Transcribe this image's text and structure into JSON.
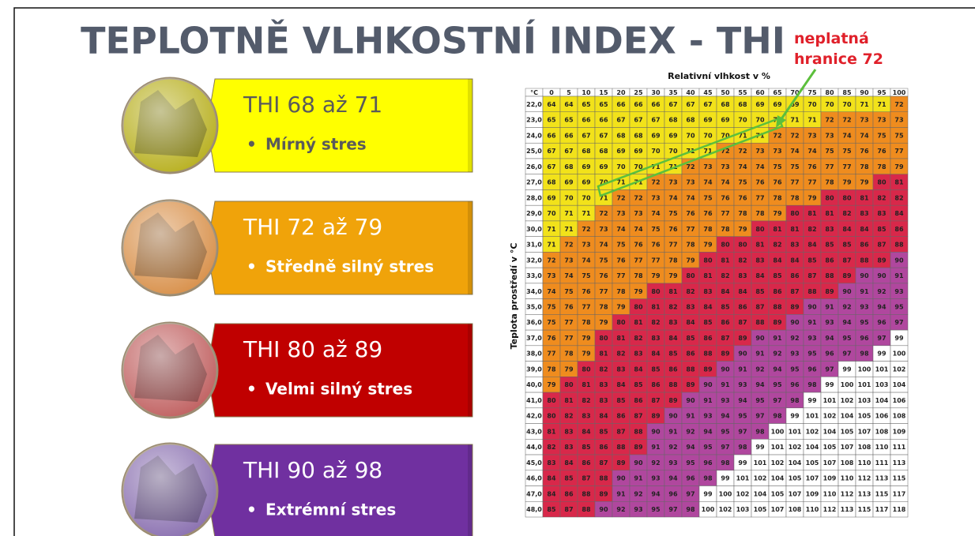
{
  "header": {
    "title": "TEPLOTNĚ VLHKOSTNÍ INDEX - THI"
  },
  "levels": [
    {
      "title": "THI 68 až 71",
      "text": "Mírný stres",
      "color": "#ffff00",
      "ink": "#5a5a5a",
      "photo": "#b8b020"
    },
    {
      "title": "THI 72 až 79",
      "text": "Středně silný stres",
      "color": "#f0a30a",
      "ink": "#ffffff",
      "photo": "#d8904a"
    },
    {
      "title": "THI 80 až 89",
      "text": "Velmi silný stres",
      "color": "#c00000",
      "ink": "#ffffff",
      "photo": "#c06060"
    },
    {
      "title": "THI 90 až 98",
      "text": "Extrémní stres",
      "color": "#7030a0",
      "ink": "#ffffff",
      "photo": "#8a70b0"
    }
  ],
  "annotation": {
    "text": "neplatná hranice 72"
  },
  "table": {
    "title": "Relativní vlhkost v %",
    "y_label": "Teplota prostředí v °C",
    "columns": [
      "°C",
      0,
      5,
      10,
      15,
      20,
      25,
      30,
      35,
      40,
      45,
      50,
      55,
      60,
      65,
      70,
      75,
      80,
      85,
      90,
      95,
      100
    ],
    "zones": [
      {
        "max": 71,
        "color": "#f2e21a"
      },
      {
        "max": 79,
        "color": "#ef8c1e"
      },
      {
        "max": 89,
        "color": "#d8284a"
      },
      {
        "max": 98,
        "color": "#b0479e"
      }
    ],
    "above_color": "#ffffff",
    "rows": [
      [
        "22,0",
        64,
        64,
        65,
        65,
        66,
        66,
        66,
        67,
        67,
        67,
        68,
        68,
        69,
        69,
        69,
        70,
        70,
        70,
        71,
        71,
        72
      ],
      [
        "23,0",
        65,
        65,
        66,
        66,
        67,
        67,
        67,
        68,
        68,
        69,
        69,
        70,
        70,
        70,
        71,
        71,
        72,
        72,
        73,
        73,
        73
      ],
      [
        "24,0",
        66,
        66,
        67,
        67,
        68,
        68,
        69,
        69,
        70,
        70,
        70,
        71,
        71,
        72,
        72,
        73,
        73,
        74,
        74,
        75,
        75
      ],
      [
        "25,0",
        67,
        67,
        68,
        68,
        69,
        69,
        70,
        70,
        71,
        71,
        72,
        72,
        73,
        73,
        74,
        74,
        75,
        75,
        76,
        76,
        77
      ],
      [
        "26,0",
        67,
        68,
        69,
        69,
        70,
        70,
        71,
        71,
        72,
        73,
        73,
        74,
        74,
        75,
        75,
        76,
        77,
        77,
        78,
        78,
        79
      ],
      [
        "27,0",
        68,
        69,
        69,
        70,
        71,
        71,
        72,
        73,
        73,
        74,
        74,
        75,
        76,
        76,
        77,
        77,
        78,
        79,
        79,
        80,
        81
      ],
      [
        "28,0",
        69,
        70,
        70,
        71,
        72,
        72,
        73,
        74,
        74,
        75,
        76,
        76,
        77,
        78,
        78,
        79,
        80,
        80,
        81,
        82,
        82
      ],
      [
        "29,0",
        70,
        71,
        71,
        72,
        73,
        73,
        74,
        75,
        76,
        76,
        77,
        78,
        78,
        79,
        80,
        81,
        81,
        82,
        83,
        83,
        84
      ],
      [
        "30,0",
        71,
        71,
        72,
        73,
        74,
        74,
        75,
        76,
        77,
        78,
        78,
        79,
        80,
        81,
        81,
        82,
        83,
        84,
        84,
        85,
        86
      ],
      [
        "31,0",
        71,
        72,
        73,
        74,
        75,
        76,
        76,
        77,
        78,
        79,
        80,
        80,
        81,
        82,
        83,
        84,
        85,
        85,
        86,
        87,
        88
      ],
      [
        "32,0",
        72,
        73,
        74,
        75,
        76,
        77,
        77,
        78,
        79,
        80,
        81,
        82,
        83,
        84,
        84,
        85,
        86,
        87,
        88,
        89,
        90
      ],
      [
        "33,0",
        73,
        74,
        75,
        76,
        77,
        78,
        79,
        79,
        80,
        81,
        82,
        83,
        84,
        85,
        86,
        87,
        88,
        89,
        90,
        90,
        91
      ],
      [
        "34,0",
        74,
        75,
        76,
        77,
        78,
        79,
        80,
        81,
        82,
        83,
        84,
        84,
        85,
        86,
        87,
        88,
        89,
        90,
        91,
        92,
        93
      ],
      [
        "35,0",
        75,
        76,
        77,
        78,
        79,
        80,
        81,
        82,
        83,
        84,
        85,
        86,
        87,
        88,
        89,
        90,
        91,
        92,
        93,
        94,
        95
      ],
      [
        "36,0",
        75,
        77,
        78,
        79,
        80,
        81,
        82,
        83,
        84,
        85,
        86,
        87,
        88,
        89,
        90,
        91,
        93,
        94,
        95,
        96,
        97
      ],
      [
        "37,0",
        76,
        77,
        79,
        80,
        81,
        82,
        83,
        84,
        85,
        86,
        87,
        89,
        90,
        91,
        92,
        93,
        94,
        95,
        96,
        97,
        99
      ],
      [
        "38,0",
        77,
        78,
        79,
        81,
        82,
        83,
        84,
        85,
        86,
        88,
        89,
        90,
        91,
        92,
        93,
        95,
        96,
        97,
        98,
        99,
        100
      ],
      [
        "39,0",
        78,
        79,
        80,
        82,
        83,
        84,
        85,
        86,
        88,
        89,
        90,
        91,
        92,
        94,
        95,
        96,
        97,
        99,
        100,
        101,
        102
      ],
      [
        "40,0",
        79,
        80,
        81,
        83,
        84,
        85,
        86,
        88,
        89,
        90,
        91,
        93,
        94,
        95,
        96,
        98,
        99,
        100,
        101,
        103,
        104
      ],
      [
        "41,0",
        80,
        81,
        82,
        83,
        85,
        86,
        87,
        89,
        90,
        91,
        93,
        94,
        95,
        97,
        98,
        99,
        101,
        102,
        103,
        104,
        106
      ],
      [
        "42,0",
        80,
        82,
        83,
        84,
        86,
        87,
        89,
        90,
        91,
        93,
        94,
        95,
        97,
        98,
        99,
        101,
        102,
        104,
        105,
        106,
        108
      ],
      [
        "43,0",
        81,
        83,
        84,
        85,
        87,
        88,
        90,
        91,
        92,
        94,
        95,
        97,
        98,
        100,
        101,
        102,
        104,
        105,
        107,
        108,
        109
      ],
      [
        "44,0",
        82,
        83,
        85,
        86,
        88,
        89,
        91,
        92,
        94,
        95,
        97,
        98,
        99,
        101,
        102,
        104,
        105,
        107,
        108,
        110,
        111
      ],
      [
        "45,0",
        83,
        84,
        86,
        87,
        89,
        90,
        92,
        93,
        95,
        96,
        98,
        99,
        101,
        102,
        104,
        105,
        107,
        108,
        110,
        111,
        113
      ],
      [
        "46,0",
        84,
        85,
        87,
        88,
        90,
        91,
        93,
        94,
        96,
        98,
        99,
        101,
        102,
        104,
        105,
        107,
        109,
        110,
        112,
        113,
        115
      ],
      [
        "47,0",
        84,
        86,
        88,
        89,
        91,
        92,
        94,
        96,
        97,
        99,
        100,
        102,
        104,
        105,
        107,
        109,
        110,
        112,
        113,
        115,
        117
      ],
      [
        "48,0",
        85,
        87,
        88,
        90,
        92,
        93,
        95,
        97,
        98,
        100,
        102,
        103,
        105,
        107,
        108,
        110,
        112,
        113,
        115,
        117,
        118
      ]
    ]
  }
}
